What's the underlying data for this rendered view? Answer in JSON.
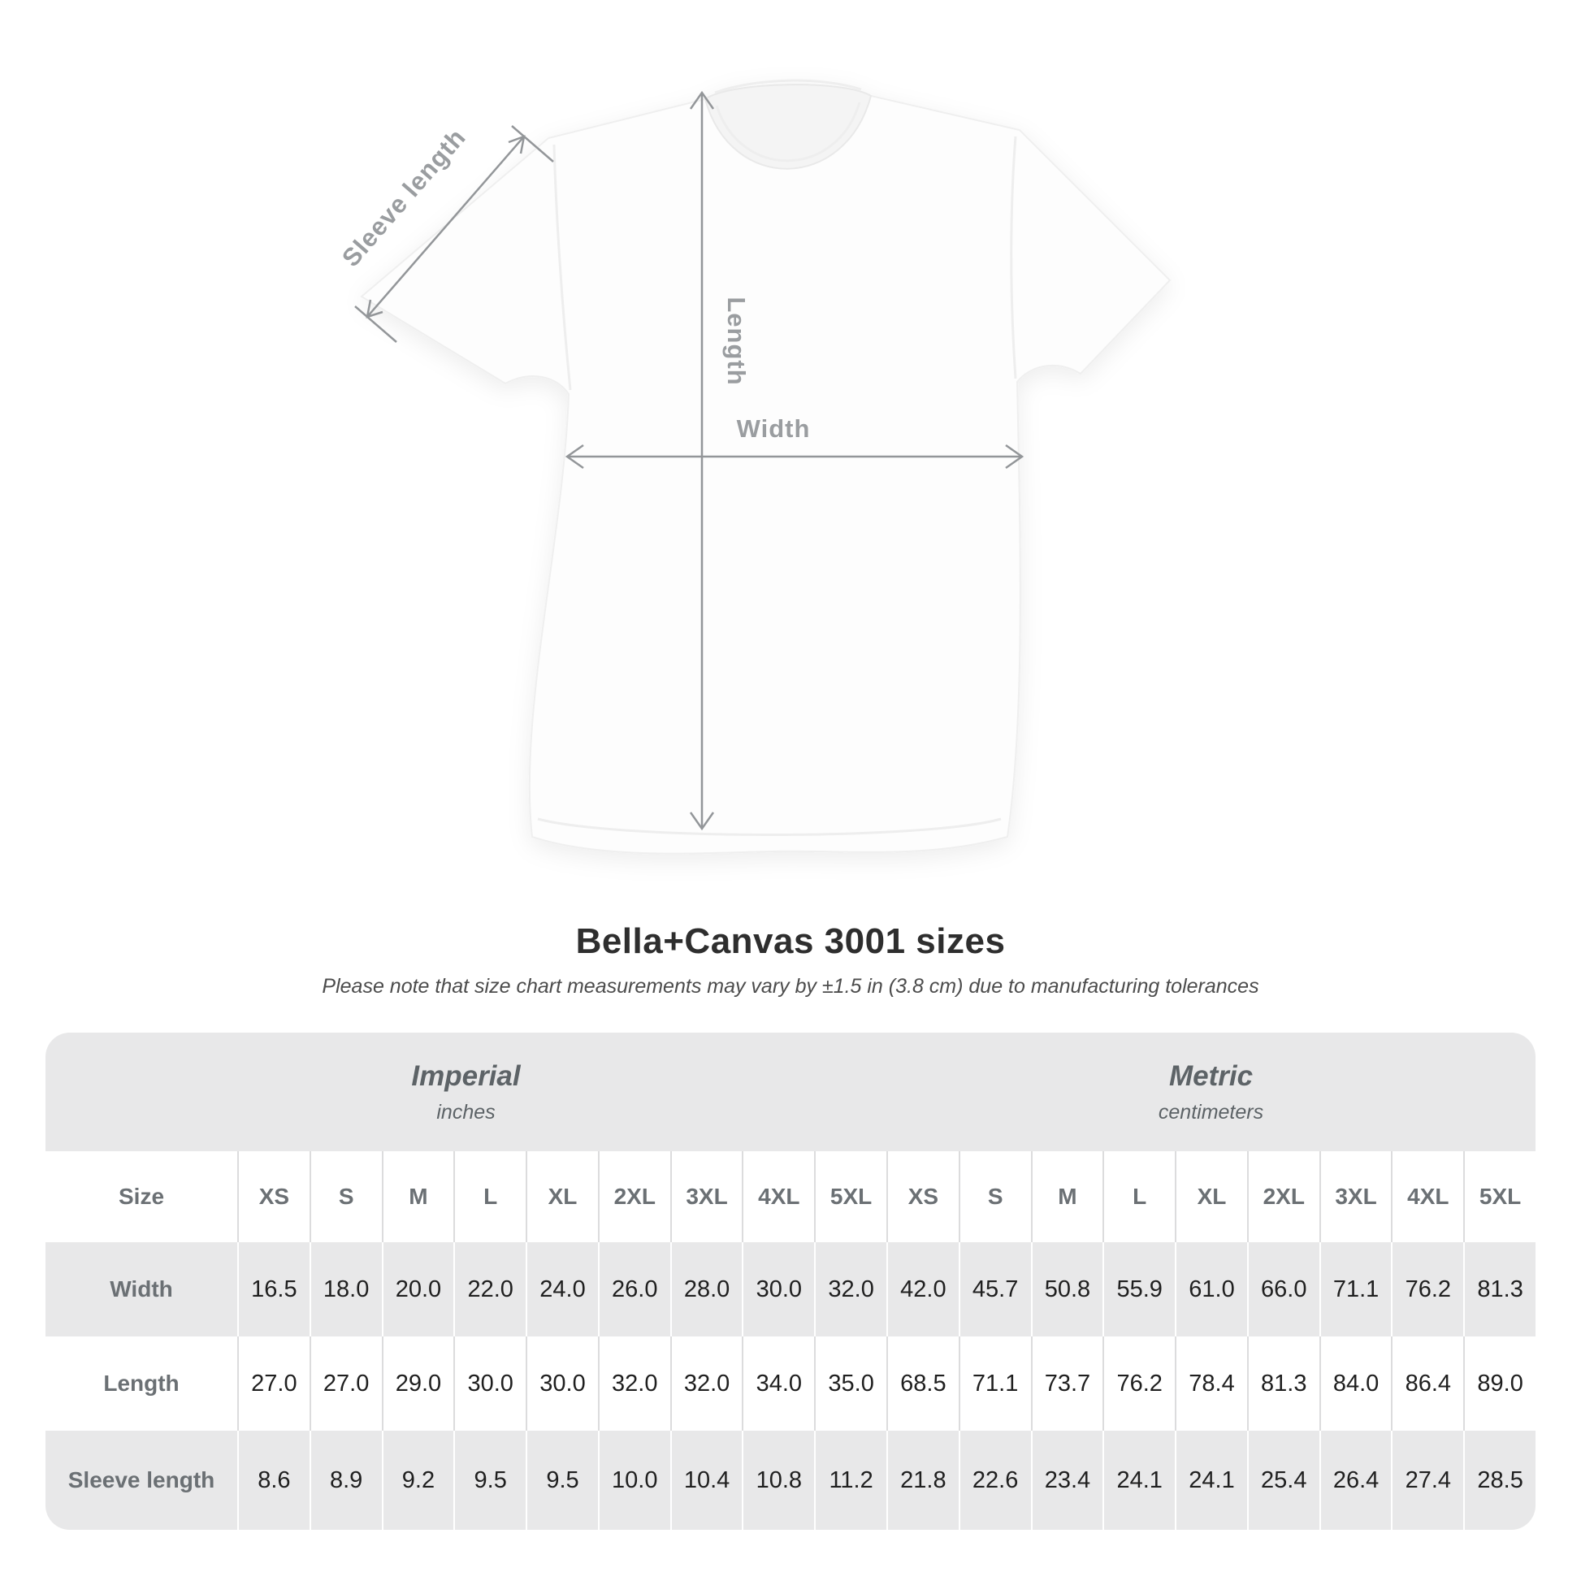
{
  "title": "Bella+Canvas 3001 sizes",
  "subtitle": "Please note that size chart measurements may vary by ±1.5 in (3.8 cm) due to manufacturing tolerances",
  "diagram": {
    "sleeve_label": "Sleeve length",
    "length_label": "Length",
    "width_label": "Width"
  },
  "table": {
    "size_header": "Size",
    "groups": [
      {
        "name": "Imperial",
        "unit": "inches"
      },
      {
        "name": "Metric",
        "unit": "centimeters"
      }
    ],
    "sizes": [
      "XS",
      "S",
      "M",
      "L",
      "XL",
      "2XL",
      "3XL",
      "4XL",
      "5XL"
    ],
    "rows": [
      {
        "label": "Width",
        "imperial": [
          "16.5",
          "18.0",
          "20.0",
          "22.0",
          "24.0",
          "26.0",
          "28.0",
          "30.0",
          "32.0"
        ],
        "metric": [
          "42.0",
          "45.7",
          "50.8",
          "55.9",
          "61.0",
          "66.0",
          "71.1",
          "76.2",
          "81.3"
        ]
      },
      {
        "label": "Length",
        "imperial": [
          "27.0",
          "27.0",
          "29.0",
          "30.0",
          "30.0",
          "32.0",
          "32.0",
          "34.0",
          "35.0"
        ],
        "metric": [
          "68.5",
          "71.1",
          "73.7",
          "76.2",
          "78.4",
          "81.3",
          "84.0",
          "86.4",
          "89.0"
        ]
      },
      {
        "label": "Sleeve length",
        "imperial": [
          "8.6",
          "8.9",
          "9.2",
          "9.5",
          "9.5",
          "10.0",
          "10.4",
          "10.8",
          "11.2"
        ],
        "metric": [
          "21.8",
          "22.6",
          "23.4",
          "24.1",
          "24.1",
          "25.4",
          "26.4",
          "27.4",
          "28.5"
        ]
      }
    ]
  },
  "chart_data": {
    "type": "table",
    "title": "Bella+Canvas 3001 sizes",
    "note": "Please note that size chart measurements may vary by ±1.5 in (3.8 cm) due to manufacturing tolerances",
    "column_groups": [
      {
        "name": "Imperial",
        "unit": "inches",
        "columns": [
          "XS",
          "S",
          "M",
          "L",
          "XL",
          "2XL",
          "3XL",
          "4XL",
          "5XL"
        ]
      },
      {
        "name": "Metric",
        "unit": "centimeters",
        "columns": [
          "XS",
          "S",
          "M",
          "L",
          "XL",
          "2XL",
          "3XL",
          "4XL",
          "5XL"
        ]
      }
    ],
    "rows": [
      {
        "label": "Width",
        "imperial": [
          16.5,
          18.0,
          20.0,
          22.0,
          24.0,
          26.0,
          28.0,
          30.0,
          32.0
        ],
        "metric": [
          42.0,
          45.7,
          50.8,
          55.9,
          61.0,
          66.0,
          71.1,
          76.2,
          81.3
        ]
      },
      {
        "label": "Length",
        "imperial": [
          27.0,
          27.0,
          29.0,
          30.0,
          30.0,
          32.0,
          32.0,
          34.0,
          35.0
        ],
        "metric": [
          68.5,
          71.1,
          73.7,
          76.2,
          78.4,
          81.3,
          84.0,
          86.4,
          89.0
        ]
      },
      {
        "label": "Sleeve length",
        "imperial": [
          8.6,
          8.9,
          9.2,
          9.5,
          9.5,
          10.0,
          10.4,
          10.8,
          11.2
        ],
        "metric": [
          21.8,
          22.6,
          23.4,
          24.1,
          24.1,
          25.4,
          26.4,
          27.4,
          28.5
        ]
      }
    ]
  },
  "colors": {
    "row_gray": "#e8e8e9",
    "separator_on_white": "#dcdcdd",
    "heading_gray": "#6b7074",
    "number_dark": "#1f1f1f",
    "diagram_gray": "#9a9da0",
    "title_dark": "#2e2e2e"
  }
}
